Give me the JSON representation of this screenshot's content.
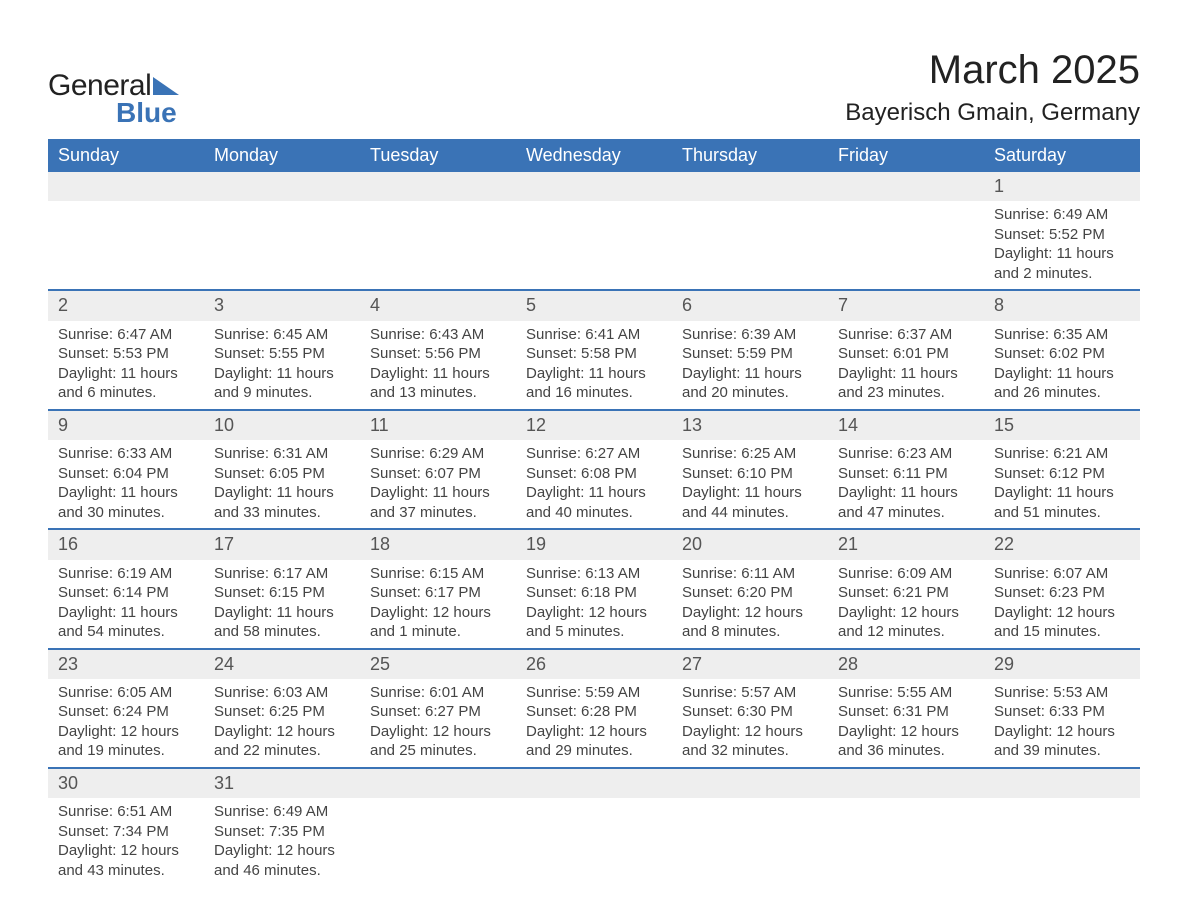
{
  "brand": {
    "part1": "General",
    "part2": "Blue"
  },
  "title": "March 2025",
  "location": "Bayerisch Gmain, Germany",
  "colors": {
    "header_bg": "#3a73b6",
    "header_text": "#ffffff",
    "daynum_bg": "#eeeeee",
    "row_border": "#3a73b6",
    "body_text": "#444444",
    "page_bg": "#ffffff"
  },
  "fonts": {
    "title_size_pt": 30,
    "location_size_pt": 18,
    "header_size_pt": 13,
    "cell_size_pt": 11
  },
  "daysOfWeek": [
    "Sunday",
    "Monday",
    "Tuesday",
    "Wednesday",
    "Thursday",
    "Friday",
    "Saturday"
  ],
  "weeks": [
    [
      null,
      null,
      null,
      null,
      null,
      null,
      {
        "n": "1",
        "sunrise": "Sunrise: 6:49 AM",
        "sunset": "Sunset: 5:52 PM",
        "dl1": "Daylight: 11 hours",
        "dl2": "and 2 minutes."
      }
    ],
    [
      {
        "n": "2",
        "sunrise": "Sunrise: 6:47 AM",
        "sunset": "Sunset: 5:53 PM",
        "dl1": "Daylight: 11 hours",
        "dl2": "and 6 minutes."
      },
      {
        "n": "3",
        "sunrise": "Sunrise: 6:45 AM",
        "sunset": "Sunset: 5:55 PM",
        "dl1": "Daylight: 11 hours",
        "dl2": "and 9 minutes."
      },
      {
        "n": "4",
        "sunrise": "Sunrise: 6:43 AM",
        "sunset": "Sunset: 5:56 PM",
        "dl1": "Daylight: 11 hours",
        "dl2": "and 13 minutes."
      },
      {
        "n": "5",
        "sunrise": "Sunrise: 6:41 AM",
        "sunset": "Sunset: 5:58 PM",
        "dl1": "Daylight: 11 hours",
        "dl2": "and 16 minutes."
      },
      {
        "n": "6",
        "sunrise": "Sunrise: 6:39 AM",
        "sunset": "Sunset: 5:59 PM",
        "dl1": "Daylight: 11 hours",
        "dl2": "and 20 minutes."
      },
      {
        "n": "7",
        "sunrise": "Sunrise: 6:37 AM",
        "sunset": "Sunset: 6:01 PM",
        "dl1": "Daylight: 11 hours",
        "dl2": "and 23 minutes."
      },
      {
        "n": "8",
        "sunrise": "Sunrise: 6:35 AM",
        "sunset": "Sunset: 6:02 PM",
        "dl1": "Daylight: 11 hours",
        "dl2": "and 26 minutes."
      }
    ],
    [
      {
        "n": "9",
        "sunrise": "Sunrise: 6:33 AM",
        "sunset": "Sunset: 6:04 PM",
        "dl1": "Daylight: 11 hours",
        "dl2": "and 30 minutes."
      },
      {
        "n": "10",
        "sunrise": "Sunrise: 6:31 AM",
        "sunset": "Sunset: 6:05 PM",
        "dl1": "Daylight: 11 hours",
        "dl2": "and 33 minutes."
      },
      {
        "n": "11",
        "sunrise": "Sunrise: 6:29 AM",
        "sunset": "Sunset: 6:07 PM",
        "dl1": "Daylight: 11 hours",
        "dl2": "and 37 minutes."
      },
      {
        "n": "12",
        "sunrise": "Sunrise: 6:27 AM",
        "sunset": "Sunset: 6:08 PM",
        "dl1": "Daylight: 11 hours",
        "dl2": "and 40 minutes."
      },
      {
        "n": "13",
        "sunrise": "Sunrise: 6:25 AM",
        "sunset": "Sunset: 6:10 PM",
        "dl1": "Daylight: 11 hours",
        "dl2": "and 44 minutes."
      },
      {
        "n": "14",
        "sunrise": "Sunrise: 6:23 AM",
        "sunset": "Sunset: 6:11 PM",
        "dl1": "Daylight: 11 hours",
        "dl2": "and 47 minutes."
      },
      {
        "n": "15",
        "sunrise": "Sunrise: 6:21 AM",
        "sunset": "Sunset: 6:12 PM",
        "dl1": "Daylight: 11 hours",
        "dl2": "and 51 minutes."
      }
    ],
    [
      {
        "n": "16",
        "sunrise": "Sunrise: 6:19 AM",
        "sunset": "Sunset: 6:14 PM",
        "dl1": "Daylight: 11 hours",
        "dl2": "and 54 minutes."
      },
      {
        "n": "17",
        "sunrise": "Sunrise: 6:17 AM",
        "sunset": "Sunset: 6:15 PM",
        "dl1": "Daylight: 11 hours",
        "dl2": "and 58 minutes."
      },
      {
        "n": "18",
        "sunrise": "Sunrise: 6:15 AM",
        "sunset": "Sunset: 6:17 PM",
        "dl1": "Daylight: 12 hours",
        "dl2": "and 1 minute."
      },
      {
        "n": "19",
        "sunrise": "Sunrise: 6:13 AM",
        "sunset": "Sunset: 6:18 PM",
        "dl1": "Daylight: 12 hours",
        "dl2": "and 5 minutes."
      },
      {
        "n": "20",
        "sunrise": "Sunrise: 6:11 AM",
        "sunset": "Sunset: 6:20 PM",
        "dl1": "Daylight: 12 hours",
        "dl2": "and 8 minutes."
      },
      {
        "n": "21",
        "sunrise": "Sunrise: 6:09 AM",
        "sunset": "Sunset: 6:21 PM",
        "dl1": "Daylight: 12 hours",
        "dl2": "and 12 minutes."
      },
      {
        "n": "22",
        "sunrise": "Sunrise: 6:07 AM",
        "sunset": "Sunset: 6:23 PM",
        "dl1": "Daylight: 12 hours",
        "dl2": "and 15 minutes."
      }
    ],
    [
      {
        "n": "23",
        "sunrise": "Sunrise: 6:05 AM",
        "sunset": "Sunset: 6:24 PM",
        "dl1": "Daylight: 12 hours",
        "dl2": "and 19 minutes."
      },
      {
        "n": "24",
        "sunrise": "Sunrise: 6:03 AM",
        "sunset": "Sunset: 6:25 PM",
        "dl1": "Daylight: 12 hours",
        "dl2": "and 22 minutes."
      },
      {
        "n": "25",
        "sunrise": "Sunrise: 6:01 AM",
        "sunset": "Sunset: 6:27 PM",
        "dl1": "Daylight: 12 hours",
        "dl2": "and 25 minutes."
      },
      {
        "n": "26",
        "sunrise": "Sunrise: 5:59 AM",
        "sunset": "Sunset: 6:28 PM",
        "dl1": "Daylight: 12 hours",
        "dl2": "and 29 minutes."
      },
      {
        "n": "27",
        "sunrise": "Sunrise: 5:57 AM",
        "sunset": "Sunset: 6:30 PM",
        "dl1": "Daylight: 12 hours",
        "dl2": "and 32 minutes."
      },
      {
        "n": "28",
        "sunrise": "Sunrise: 5:55 AM",
        "sunset": "Sunset: 6:31 PM",
        "dl1": "Daylight: 12 hours",
        "dl2": "and 36 minutes."
      },
      {
        "n": "29",
        "sunrise": "Sunrise: 5:53 AM",
        "sunset": "Sunset: 6:33 PM",
        "dl1": "Daylight: 12 hours",
        "dl2": "and 39 minutes."
      }
    ],
    [
      {
        "n": "30",
        "sunrise": "Sunrise: 6:51 AM",
        "sunset": "Sunset: 7:34 PM",
        "dl1": "Daylight: 12 hours",
        "dl2": "and 43 minutes."
      },
      {
        "n": "31",
        "sunrise": "Sunrise: 6:49 AM",
        "sunset": "Sunset: 7:35 PM",
        "dl1": "Daylight: 12 hours",
        "dl2": "and 46 minutes."
      },
      null,
      null,
      null,
      null,
      null
    ]
  ]
}
